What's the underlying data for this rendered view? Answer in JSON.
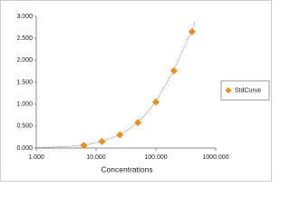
{
  "chart_data": {
    "type": "scatter",
    "xlabel": "Concentrations",
    "xscale": "log",
    "xlim": [
      1,
      1000
    ],
    "xticks": [
      {
        "value": 1,
        "label": "1.000"
      },
      {
        "value": 10,
        "label": "10.000"
      },
      {
        "value": 100,
        "label": "100.000"
      },
      {
        "value": 1000,
        "label": "1000.000"
      }
    ],
    "ylim": [
      0,
      3
    ],
    "yticks": [
      {
        "value": 0,
        "label": "0.000"
      },
      {
        "value": 0.5,
        "label": "0.500"
      },
      {
        "value": 1,
        "label": "1.000"
      },
      {
        "value": 1.5,
        "label": "1.500"
      },
      {
        "value": 2,
        "label": "2.000"
      },
      {
        "value": 2.5,
        "label": "2.500"
      },
      {
        "value": 3,
        "label": "3.000"
      }
    ],
    "grid": false,
    "legend": "right",
    "series": [
      {
        "name": "StdCurve",
        "color": "#f08c1e",
        "x": [
          6.25,
          12.5,
          25,
          50,
          100,
          200,
          400
        ],
        "values": [
          0.06,
          0.15,
          0.3,
          0.58,
          1.05,
          1.76,
          2.65
        ]
      }
    ],
    "trendline": {
      "color": "#888888",
      "x": [
        1,
        3,
        6.25,
        12.5,
        25,
        50,
        100,
        200,
        400,
        450
      ],
      "values": [
        0.01,
        0.03,
        0.07,
        0.15,
        0.3,
        0.57,
        1.05,
        1.78,
        2.68,
        2.88
      ]
    }
  }
}
